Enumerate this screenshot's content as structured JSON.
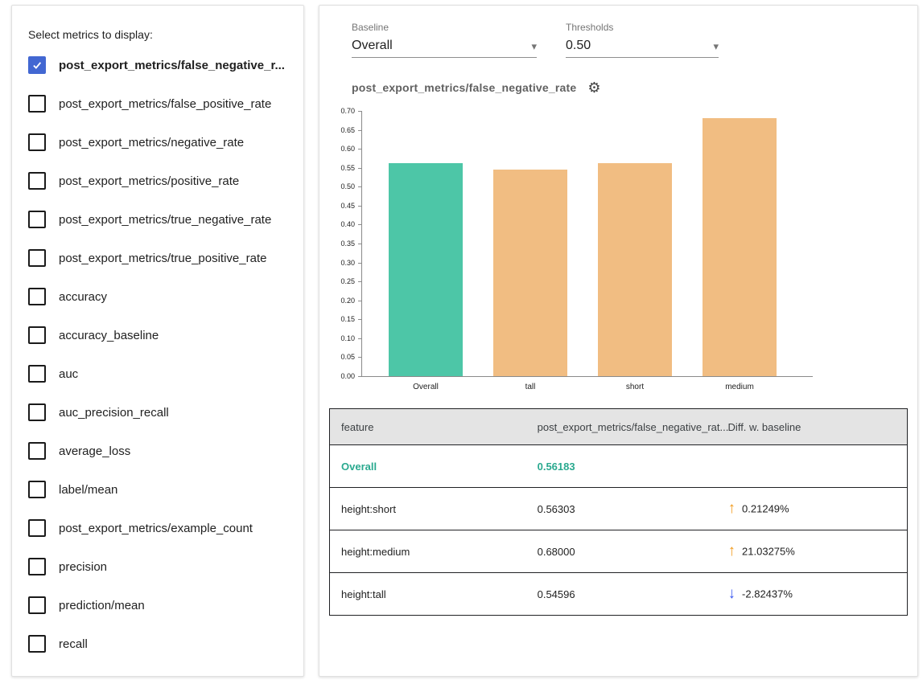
{
  "sidebar": {
    "title": "Select metrics to display:",
    "metrics": [
      {
        "label": "post_export_metrics/false_negative_r...",
        "checked": true
      },
      {
        "label": "post_export_metrics/false_positive_rate",
        "checked": false
      },
      {
        "label": "post_export_metrics/negative_rate",
        "checked": false
      },
      {
        "label": "post_export_metrics/positive_rate",
        "checked": false
      },
      {
        "label": "post_export_metrics/true_negative_rate",
        "checked": false
      },
      {
        "label": "post_export_metrics/true_positive_rate",
        "checked": false
      },
      {
        "label": "accuracy",
        "checked": false
      },
      {
        "label": "accuracy_baseline",
        "checked": false
      },
      {
        "label": "auc",
        "checked": false
      },
      {
        "label": "auc_precision_recall",
        "checked": false
      },
      {
        "label": "average_loss",
        "checked": false
      },
      {
        "label": "label/mean",
        "checked": false
      },
      {
        "label": "post_export_metrics/example_count",
        "checked": false
      },
      {
        "label": "precision",
        "checked": false
      },
      {
        "label": "prediction/mean",
        "checked": false
      },
      {
        "label": "recall",
        "checked": false
      }
    ]
  },
  "controls": {
    "baseline": {
      "label": "Baseline",
      "value": "Overall"
    },
    "thresholds": {
      "label": "Thresholds",
      "value": "0.50"
    }
  },
  "chart": {
    "title": "post_export_metrics/false_negative_rate",
    "settings_icon": "gear-icon"
  },
  "chart_data": {
    "type": "bar",
    "categories": [
      "Overall",
      "tall",
      "short",
      "medium"
    ],
    "values": [
      0.56183,
      0.54596,
      0.56303,
      0.68
    ],
    "colors": [
      "#4dc6a7",
      "#f1bd82",
      "#f1bd82",
      "#f1bd82"
    ],
    "title": "post_export_metrics/false_negative_rate",
    "xlabel": "",
    "ylabel": "",
    "ylim": [
      0,
      0.7
    ],
    "ytick_step": 0.05,
    "grid": false,
    "legend": "none"
  },
  "table": {
    "headers": [
      "feature",
      "post_export_metrics/false_negative_rat...",
      "Diff. w. baseline"
    ],
    "rows": [
      {
        "feature": "Overall",
        "value": "0.56183",
        "diff": "",
        "direction": "",
        "highlight": true
      },
      {
        "feature": "height:short",
        "value": "0.56303",
        "diff": "0.21249%",
        "direction": "up",
        "highlight": false
      },
      {
        "feature": "height:medium",
        "value": "0.68000",
        "diff": "21.03275%",
        "direction": "up",
        "highlight": false
      },
      {
        "feature": "height:tall",
        "value": "0.54596",
        "diff": "-2.82437%",
        "direction": "down",
        "highlight": false
      }
    ]
  },
  "colors": {
    "baseline_bar": "#4dc6a7",
    "slice_bar": "#f1bd82",
    "highlight_text": "#2aa98f",
    "up_arrow": "#f29b1d",
    "down_arrow": "#3d5af1",
    "checkbox_checked": "#4267d2"
  }
}
